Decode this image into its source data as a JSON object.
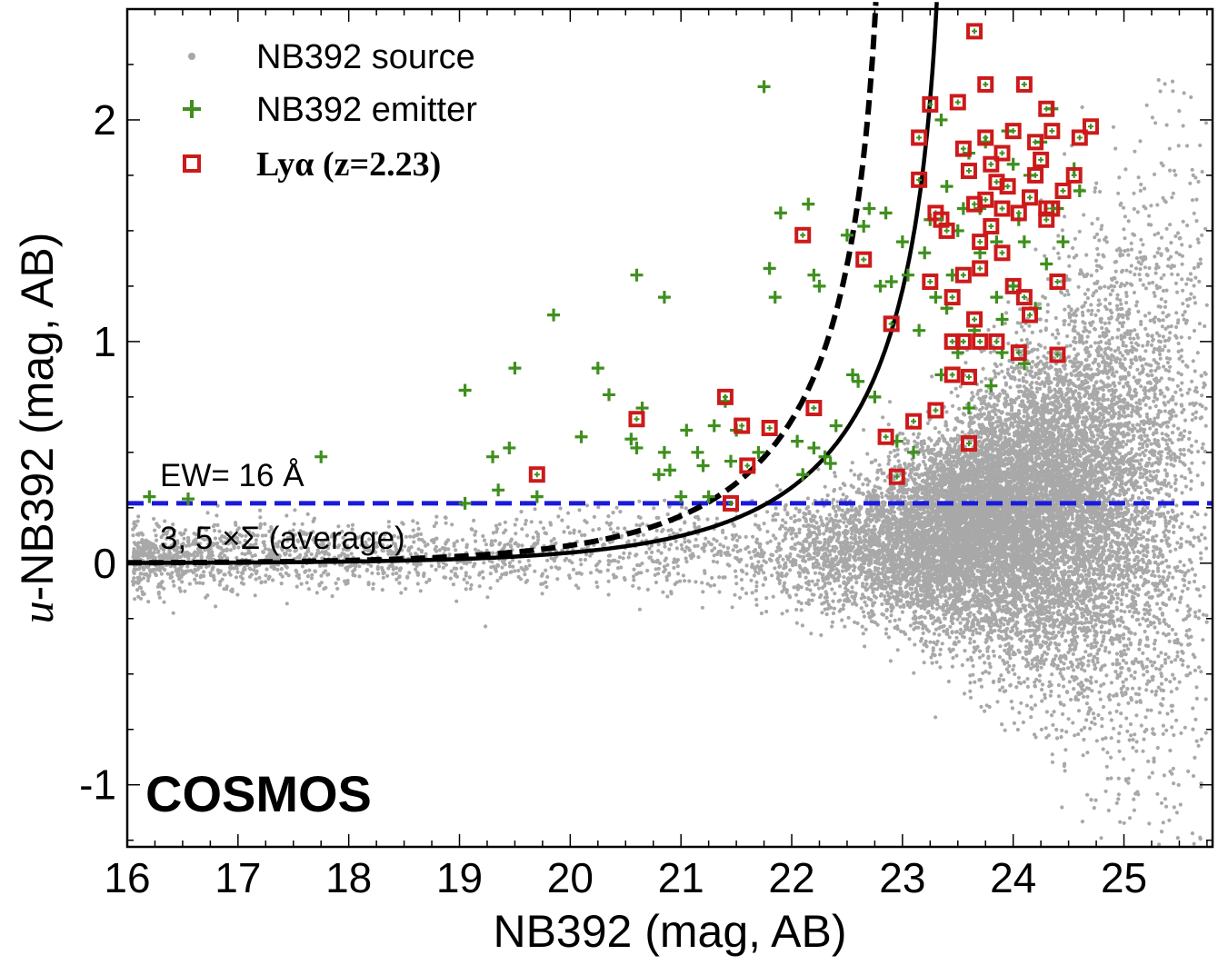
{
  "chart_data": {
    "type": "scatter",
    "title": "",
    "field_label": "COSMOS",
    "xlabel": "NB392 (mag, AB)",
    "ylabel_italic": "u",
    "ylabel_rest": "-NB392 (mag, AB)",
    "xlim": [
      16,
      25.8
    ],
    "ylim": [
      -1.28,
      2.5
    ],
    "x_ticks": [
      16,
      17,
      18,
      19,
      20,
      21,
      22,
      23,
      24,
      25
    ],
    "x_tick_labels": [
      "16",
      "17",
      "18",
      "19",
      "20",
      "21",
      "22",
      "23",
      "24",
      "25"
    ],
    "y_ticks": [
      -1,
      0,
      1,
      2
    ],
    "y_tick_labels": [
      "-1",
      "0",
      "1",
      "2"
    ],
    "legend_position": "top-left",
    "legend": [
      {
        "label": "NB392 source",
        "marker": "dot",
        "color": "#a8a8a8"
      },
      {
        "label": "NB392 emitter",
        "marker": "plus",
        "color": "#3f8f1f"
      },
      {
        "label": "Lyα (z=2.23)",
        "marker": "square",
        "color": "#cc1a1a"
      }
    ],
    "annotations": {
      "ew_label": "EW= 16 Å",
      "sigma_label": "3, 5 ×Σ (average)"
    },
    "ew_line": {
      "y": 0.27,
      "color": "#1a1adb",
      "style": "dashed"
    },
    "sigma_curves": [
      {
        "name": "3 sigma",
        "style": "solid",
        "color": "#000000",
        "model": "mu_plus_d",
        "mu": 23.41,
        "d": 0.011
      },
      {
        "name": "5 sigma",
        "style": "dashed",
        "color": "#000000",
        "model": "mu_plus_d",
        "mu": 22.86,
        "d": 0.011
      }
    ],
    "series": [
      {
        "name": "NB392 source",
        "marker": "dot",
        "color": "#a8a8a8",
        "generated": true,
        "note": "dense background cloud, ~15000 sources centered near NB392=24, u-NB392=0.1"
      },
      {
        "name": "NB392 emitter",
        "marker": "plus",
        "color": "#3f8f1f",
        "points": [
          [
            16.2,
            0.3
          ],
          [
            16.55,
            0.29
          ],
          [
            17.75,
            0.48
          ],
          [
            19.05,
            0.78
          ],
          [
            19.05,
            0.27
          ],
          [
            19.3,
            0.48
          ],
          [
            19.35,
            0.33
          ],
          [
            19.45,
            0.52
          ],
          [
            19.5,
            0.88
          ],
          [
            19.7,
            0.3
          ],
          [
            19.85,
            1.12
          ],
          [
            20.1,
            0.57
          ],
          [
            20.25,
            0.88
          ],
          [
            20.35,
            0.76
          ],
          [
            20.55,
            0.56
          ],
          [
            20.6,
            1.3
          ],
          [
            20.6,
            0.52
          ],
          [
            20.65,
            0.7
          ],
          [
            20.8,
            0.4
          ],
          [
            20.85,
            1.2
          ],
          [
            20.85,
            0.5
          ],
          [
            20.9,
            0.42
          ],
          [
            21.0,
            0.3
          ],
          [
            21.05,
            0.6
          ],
          [
            21.15,
            0.5
          ],
          [
            21.2,
            0.44
          ],
          [
            21.25,
            0.3
          ],
          [
            21.3,
            0.62
          ],
          [
            21.4,
            0.73
          ],
          [
            21.45,
            0.46
          ],
          [
            21.5,
            0.6
          ],
          [
            21.7,
            0.5
          ],
          [
            21.75,
            2.15
          ],
          [
            21.8,
            1.33
          ],
          [
            21.85,
            1.2
          ],
          [
            21.9,
            1.58
          ],
          [
            22.05,
            0.55
          ],
          [
            22.1,
            0.4
          ],
          [
            22.15,
            1.62
          ],
          [
            22.2,
            1.3
          ],
          [
            22.2,
            0.52
          ],
          [
            22.25,
            1.25
          ],
          [
            22.3,
            0.48
          ],
          [
            22.35,
            0.45
          ],
          [
            22.4,
            0.62
          ],
          [
            22.5,
            1.48
          ],
          [
            22.55,
            0.85
          ],
          [
            22.65,
            1.52
          ],
          [
            22.7,
            1.6
          ],
          [
            22.6,
            0.82
          ],
          [
            22.75,
            0.75
          ],
          [
            22.8,
            1.25
          ],
          [
            22.85,
            1.58
          ],
          [
            22.9,
            1.27
          ],
          [
            22.95,
            0.55
          ],
          [
            23.0,
            1.45
          ],
          [
            23.05,
            1.3
          ],
          [
            23.1,
            0.5
          ],
          [
            23.15,
            1.05
          ],
          [
            23.2,
            1.4
          ],
          [
            23.25,
            1.55
          ],
          [
            23.3,
            1.2
          ],
          [
            23.35,
            0.85
          ],
          [
            23.4,
            1.7
          ],
          [
            23.45,
            1.3
          ],
          [
            23.5,
            0.95
          ],
          [
            23.55,
            1.6
          ],
          [
            23.6,
            1.85
          ],
          [
            23.65,
            1.05
          ],
          [
            23.7,
            1.4
          ],
          [
            23.75,
            1.9
          ],
          [
            23.8,
            0.8
          ],
          [
            23.85,
            1.45
          ],
          [
            23.9,
            1.1
          ],
          [
            23.95,
            1.95
          ],
          [
            24.0,
            1.25
          ],
          [
            24.05,
            1.55
          ],
          [
            24.1,
            0.9
          ],
          [
            24.15,
            1.75
          ],
          [
            24.2,
            1.15
          ],
          [
            24.25,
            1.9
          ],
          [
            24.3,
            1.35
          ],
          [
            24.35,
            2.05
          ],
          [
            24.4,
            1.6
          ],
          [
            24.45,
            1.45
          ],
          [
            24.55,
            1.78
          ],
          [
            24.6,
            1.68
          ],
          [
            23.35,
            2.0
          ],
          [
            23.5,
            1.5
          ],
          [
            23.7,
            1.6
          ],
          [
            23.85,
            1.2
          ],
          [
            24.0,
            1.8
          ],
          [
            23.4,
            1.15
          ],
          [
            23.6,
            0.7
          ],
          [
            23.9,
            0.95
          ],
          [
            24.1,
            1.45
          ]
        ]
      },
      {
        "name": "Lya (z=2.23)",
        "marker": "square",
        "color": "#cc1a1a",
        "points": [
          [
            19.7,
            0.4
          ],
          [
            20.6,
            0.65
          ],
          [
            21.4,
            0.75
          ],
          [
            21.45,
            0.27
          ],
          [
            21.55,
            0.62
          ],
          [
            21.6,
            0.44
          ],
          [
            21.8,
            0.61
          ],
          [
            22.1,
            1.48
          ],
          [
            22.2,
            0.7
          ],
          [
            22.65,
            1.37
          ],
          [
            22.85,
            0.57
          ],
          [
            22.9,
            1.08
          ],
          [
            22.95,
            0.39
          ],
          [
            23.1,
            0.64
          ],
          [
            23.15,
            1.73
          ],
          [
            23.15,
            1.92
          ],
          [
            23.25,
            1.27
          ],
          [
            23.25,
            2.07
          ],
          [
            23.3,
            0.69
          ],
          [
            23.3,
            1.58
          ],
          [
            23.35,
            1.55
          ],
          [
            23.4,
            1.5
          ],
          [
            23.45,
            1.2
          ],
          [
            23.45,
            0.85
          ],
          [
            23.45,
            1.0
          ],
          [
            23.5,
            2.08
          ],
          [
            23.55,
            1.87
          ],
          [
            23.55,
            1.0
          ],
          [
            23.6,
            1.77
          ],
          [
            23.6,
            0.84
          ],
          [
            23.6,
            0.54
          ],
          [
            23.65,
            1.62
          ],
          [
            23.65,
            2.4
          ],
          [
            23.7,
            1.45
          ],
          [
            23.7,
            1.33
          ],
          [
            23.7,
            1.0
          ],
          [
            23.75,
            1.92
          ],
          [
            23.75,
            1.64
          ],
          [
            23.75,
            2.16
          ],
          [
            23.8,
            1.52
          ],
          [
            23.8,
            1.8
          ],
          [
            23.85,
            1.72
          ],
          [
            23.85,
            1.0
          ],
          [
            23.9,
            1.85
          ],
          [
            23.9,
            1.6
          ],
          [
            23.95,
            1.7
          ],
          [
            24.0,
            1.95
          ],
          [
            24.0,
            1.25
          ],
          [
            24.05,
            1.58
          ],
          [
            24.05,
            0.95
          ],
          [
            24.1,
            2.16
          ],
          [
            24.1,
            1.2
          ],
          [
            24.15,
            1.65
          ],
          [
            24.2,
            1.75
          ],
          [
            24.25,
            1.82
          ],
          [
            24.3,
            1.55
          ],
          [
            24.3,
            2.05
          ],
          [
            24.35,
            1.95
          ],
          [
            24.4,
            1.27
          ],
          [
            24.4,
            0.94
          ],
          [
            24.45,
            1.68
          ],
          [
            24.55,
            1.75
          ],
          [
            24.6,
            1.92
          ],
          [
            24.7,
            1.97
          ],
          [
            24.2,
            1.9
          ],
          [
            24.3,
            1.6
          ],
          [
            23.55,
            1.3
          ],
          [
            23.9,
            1.4
          ],
          [
            24.15,
            1.12
          ],
          [
            23.65,
            1.1
          ],
          [
            24.35,
            1.6
          ]
        ]
      }
    ]
  }
}
